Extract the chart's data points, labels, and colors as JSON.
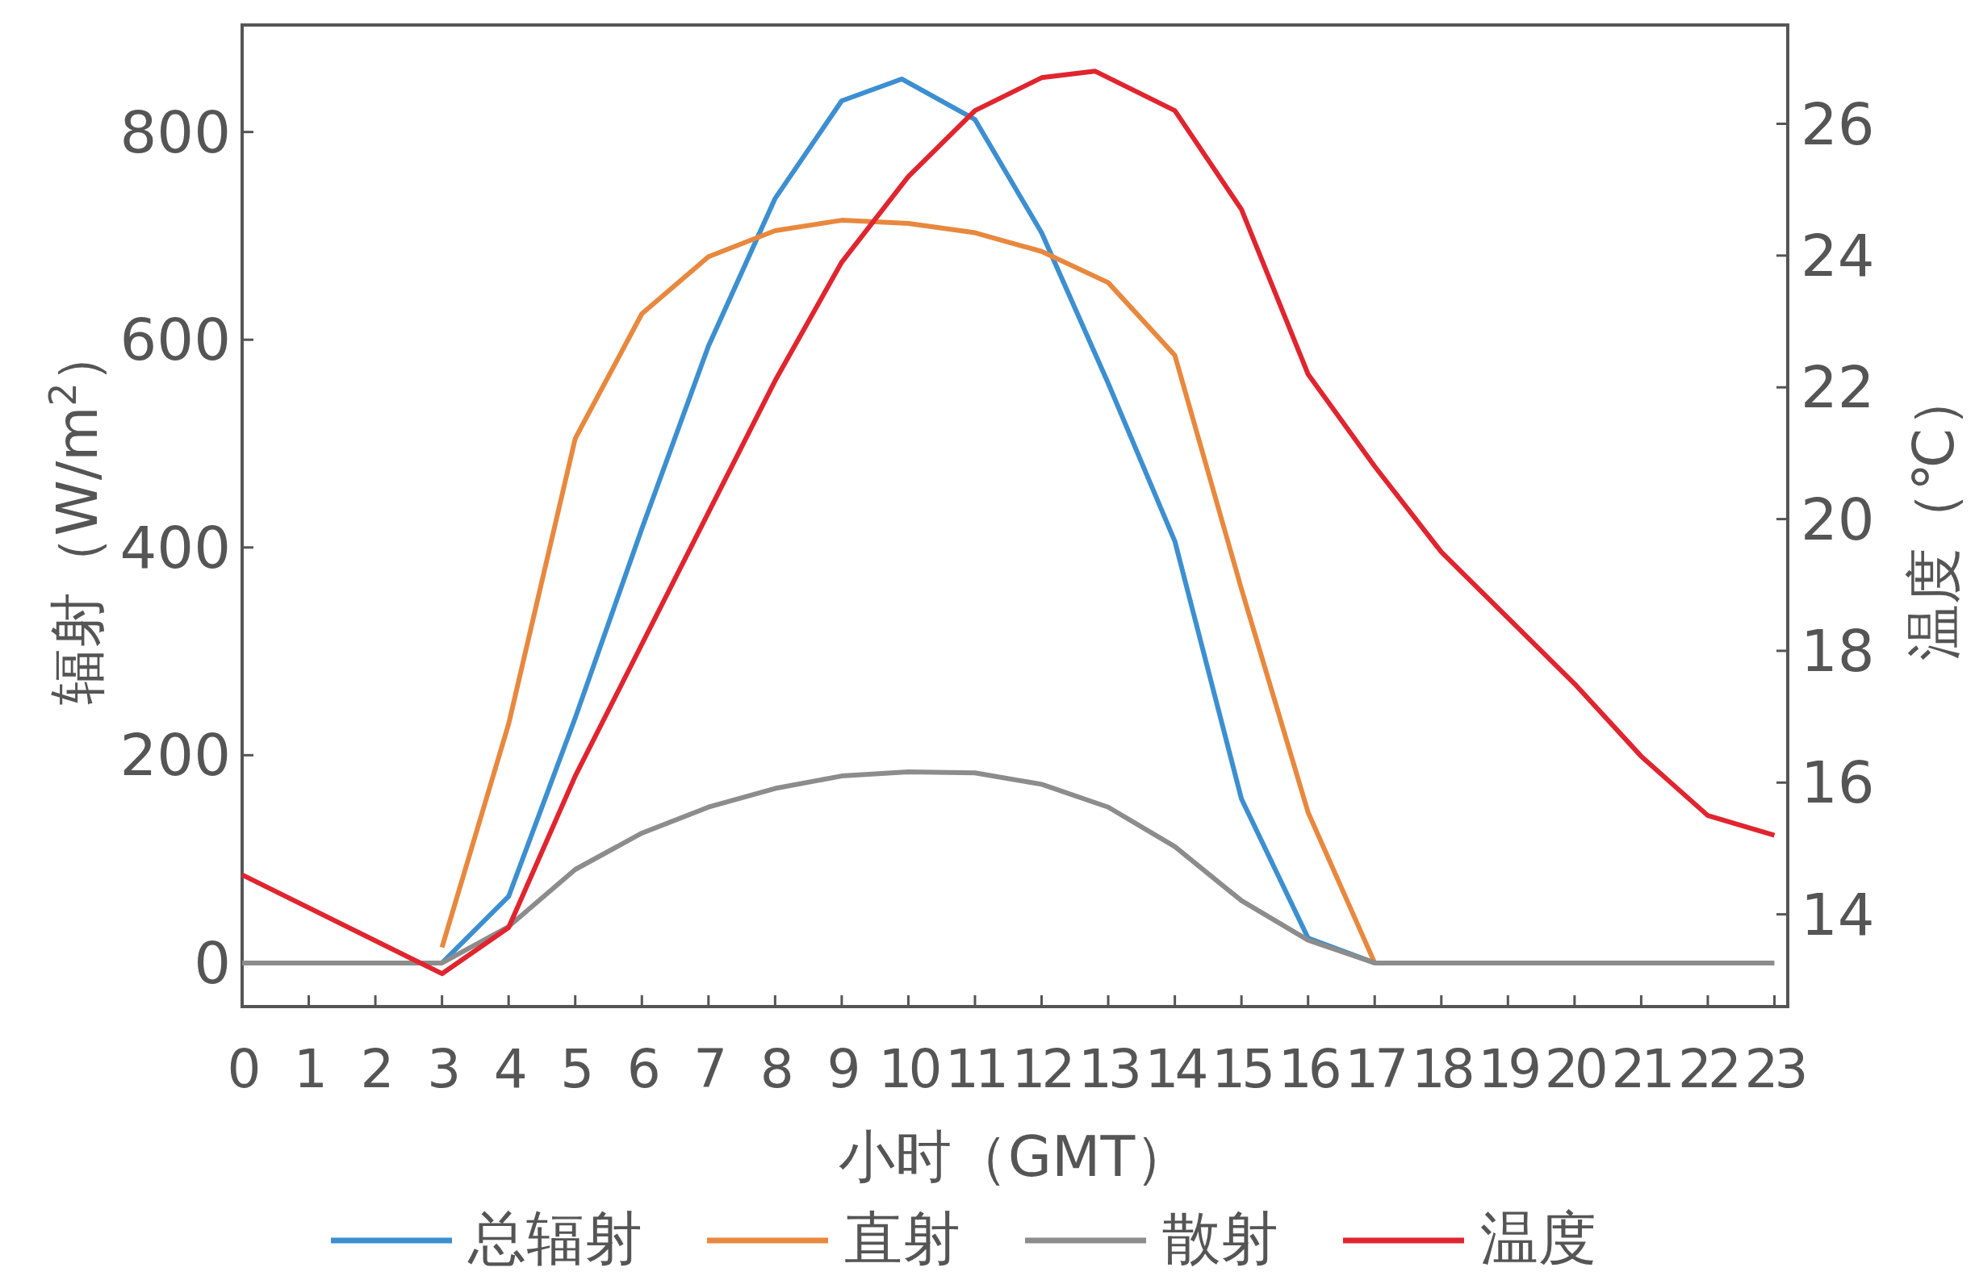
{
  "chart_data": {
    "type": "line",
    "xlabel": "小时（GMT）",
    "ylabel": "辐射（W/m$^{2}$）",
    "y2label": "温度（℃）",
    "x": [
      0,
      1,
      2,
      3,
      4,
      5,
      6,
      7,
      8,
      9,
      10,
      11,
      12,
      13,
      14,
      15,
      16,
      17,
      18,
      19,
      20,
      21,
      22,
      23
    ],
    "xlim": [
      0,
      23.2
    ],
    "xticks": [
      0,
      1,
      2,
      3,
      4,
      5,
      6,
      7,
      8,
      9,
      10,
      11,
      12,
      13,
      14,
      15,
      16,
      17,
      18,
      19,
      20,
      21,
      22,
      23
    ],
    "ylim": [
      -42,
      903
    ],
    "yticks": [
      0,
      200,
      400,
      600,
      800
    ],
    "y2lim": [
      12.6,
      27.5
    ],
    "y2ticks": [
      14,
      16,
      18,
      20,
      22,
      24,
      26
    ],
    "legend": "bottom",
    "grid": false,
    "marker": "none",
    "line_style": "solid",
    "series": [
      {
        "name": "总辐射",
        "color": "#3c8fd0",
        "x": [
          3,
          4,
          5,
          6,
          7,
          8,
          9,
          9.9,
          11,
          12,
          13,
          14,
          15,
          16,
          17
        ],
        "values": [
          0,
          64,
          236,
          418,
          594,
          736,
          830,
          851,
          812,
          703,
          558,
          406,
          158,
          24,
          0
        ]
      },
      {
        "name": "直射",
        "color": "#e8883e",
        "x": [
          3,
          4,
          5,
          6,
          7,
          8,
          9,
          10,
          11,
          12,
          13,
          14,
          15,
          16,
          17
        ],
        "values": [
          15,
          230,
          505,
          625,
          680,
          705,
          715,
          712,
          703,
          685,
          655,
          585,
          360,
          145,
          0
        ]
      },
      {
        "name": "散射",
        "color": "#8c8c8c",
        "values": [
          0,
          0,
          0,
          0,
          35,
          90,
          125,
          150,
          168,
          180,
          184,
          183,
          172,
          150,
          112,
          60,
          22,
          0,
          0,
          0,
          0,
          0,
          0,
          0
        ]
      },
      {
        "name": "温度",
        "color": "#e0252f",
        "axis": "y2",
        "x": [
          0,
          3,
          4,
          5,
          6,
          7,
          8,
          9,
          10,
          11,
          12,
          12.8,
          14,
          15,
          16,
          17,
          18,
          19,
          20,
          21,
          22,
          23
        ],
        "values": [
          14.6,
          13.1,
          13.8,
          16.1,
          18.1,
          20.1,
          22.1,
          23.9,
          25.2,
          26.2,
          26.7,
          26.8,
          26.2,
          24.7,
          22.2,
          20.8,
          19.5,
          18.5,
          17.5,
          16.4,
          15.5,
          15.2
        ]
      }
    ]
  }
}
